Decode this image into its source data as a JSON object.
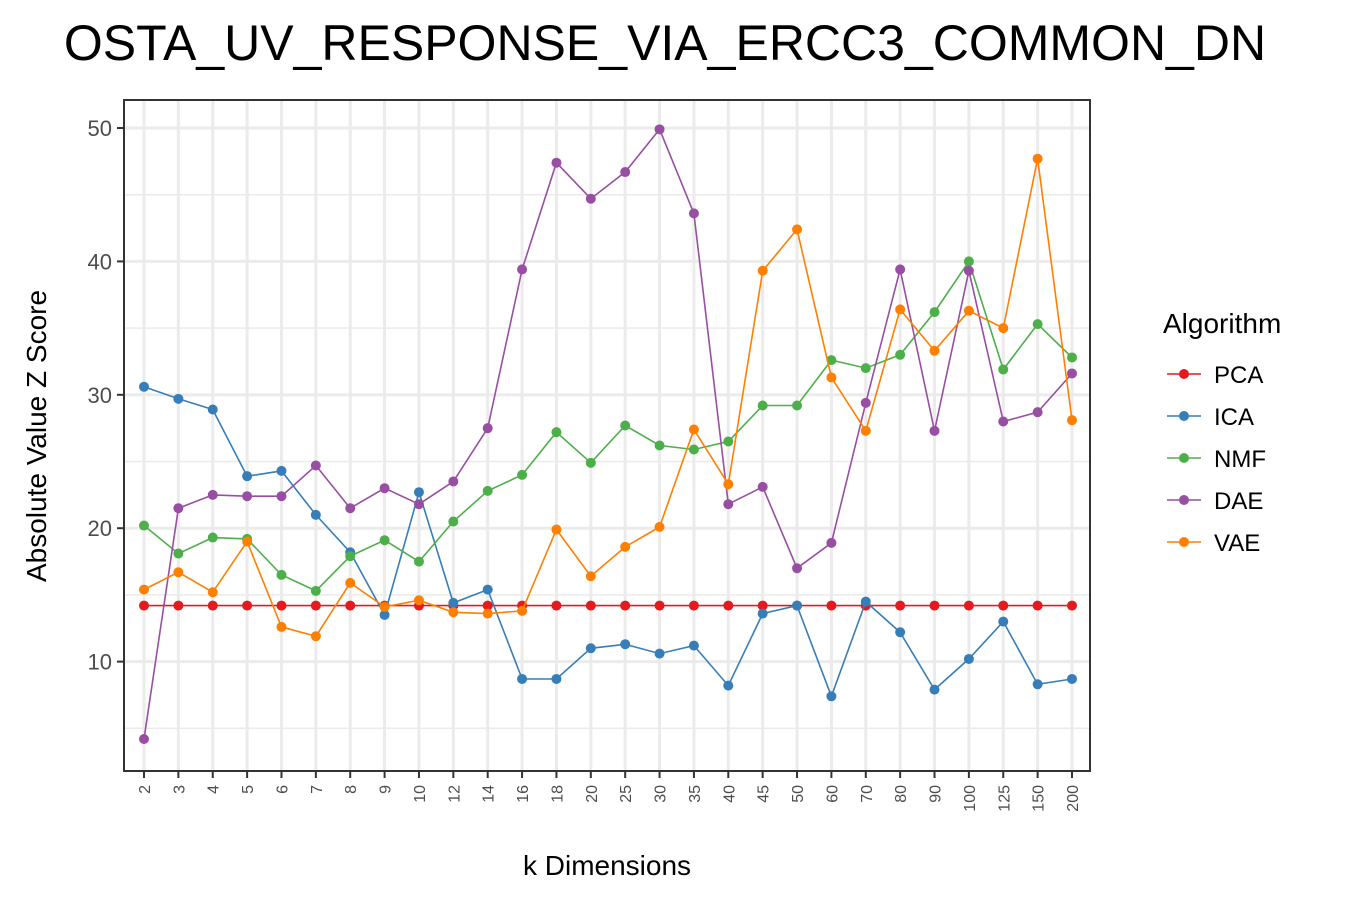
{
  "chart_data": {
    "type": "line",
    "title": "OSTA_UV_RESPONSE_VIA_ERCC3_COMMON_DN",
    "xlabel": "k Dimensions",
    "ylabel": "Absolute Value Z Score",
    "categories": [
      "2",
      "3",
      "4",
      "5",
      "6",
      "7",
      "8",
      "9",
      "10",
      "12",
      "14",
      "16",
      "18",
      "20",
      "25",
      "30",
      "35",
      "40",
      "45",
      "50",
      "60",
      "70",
      "80",
      "90",
      "100",
      "125",
      "150",
      "200"
    ],
    "ylim": [
      1.8,
      52.1
    ],
    "yticks": [
      10,
      20,
      30,
      40,
      50
    ],
    "grid": true,
    "legend_title": "Algorithm",
    "legend_position": "right",
    "series": [
      {
        "name": "PCA",
        "color": "#e41a1c",
        "values": [
          14.2,
          14.2,
          14.2,
          14.2,
          14.2,
          14.2,
          14.2,
          14.2,
          14.2,
          14.2,
          14.2,
          14.2,
          14.2,
          14.2,
          14.2,
          14.2,
          14.2,
          14.2,
          14.2,
          14.2,
          14.2,
          14.2,
          14.2,
          14.2,
          14.2,
          14.2,
          14.2,
          14.2
        ]
      },
      {
        "name": "ICA",
        "color": "#377eb8",
        "values": [
          30.6,
          29.7,
          28.9,
          23.9,
          24.3,
          21.0,
          18.2,
          13.5,
          22.7,
          14.4,
          15.4,
          8.7,
          8.7,
          11.0,
          11.3,
          10.6,
          11.2,
          8.2,
          13.6,
          14.2,
          7.4,
          14.5,
          12.2,
          7.9,
          10.2,
          13.0,
          8.3,
          8.7
        ]
      },
      {
        "name": "NMF",
        "color": "#4daf4a",
        "values": [
          20.2,
          18.1,
          19.3,
          19.2,
          16.5,
          15.3,
          17.9,
          19.1,
          17.5,
          20.5,
          22.8,
          24.0,
          27.2,
          24.9,
          27.7,
          26.2,
          25.9,
          26.5,
          29.2,
          29.2,
          32.6,
          32.0,
          33.0,
          36.2,
          40.0,
          31.9,
          35.3,
          32.8
        ]
      },
      {
        "name": "DAE",
        "color": "#984ea3",
        "values": [
          4.2,
          21.5,
          22.5,
          22.4,
          22.4,
          24.7,
          21.5,
          23.0,
          21.8,
          23.5,
          27.5,
          39.4,
          47.4,
          44.7,
          46.7,
          49.9,
          43.6,
          21.8,
          23.1,
          17.0,
          18.9,
          29.4,
          39.4,
          27.3,
          39.3,
          28.0,
          28.7,
          31.6
        ]
      },
      {
        "name": "VAE",
        "color": "#ff7f00",
        "values": [
          15.4,
          16.7,
          15.2,
          19.0,
          12.6,
          11.9,
          15.9,
          14.1,
          14.6,
          13.7,
          13.6,
          13.8,
          19.9,
          16.4,
          18.6,
          20.1,
          27.4,
          23.3,
          39.3,
          42.4,
          31.3,
          27.3,
          36.4,
          33.3,
          36.3,
          35.0,
          47.7,
          28.1
        ]
      }
    ]
  }
}
